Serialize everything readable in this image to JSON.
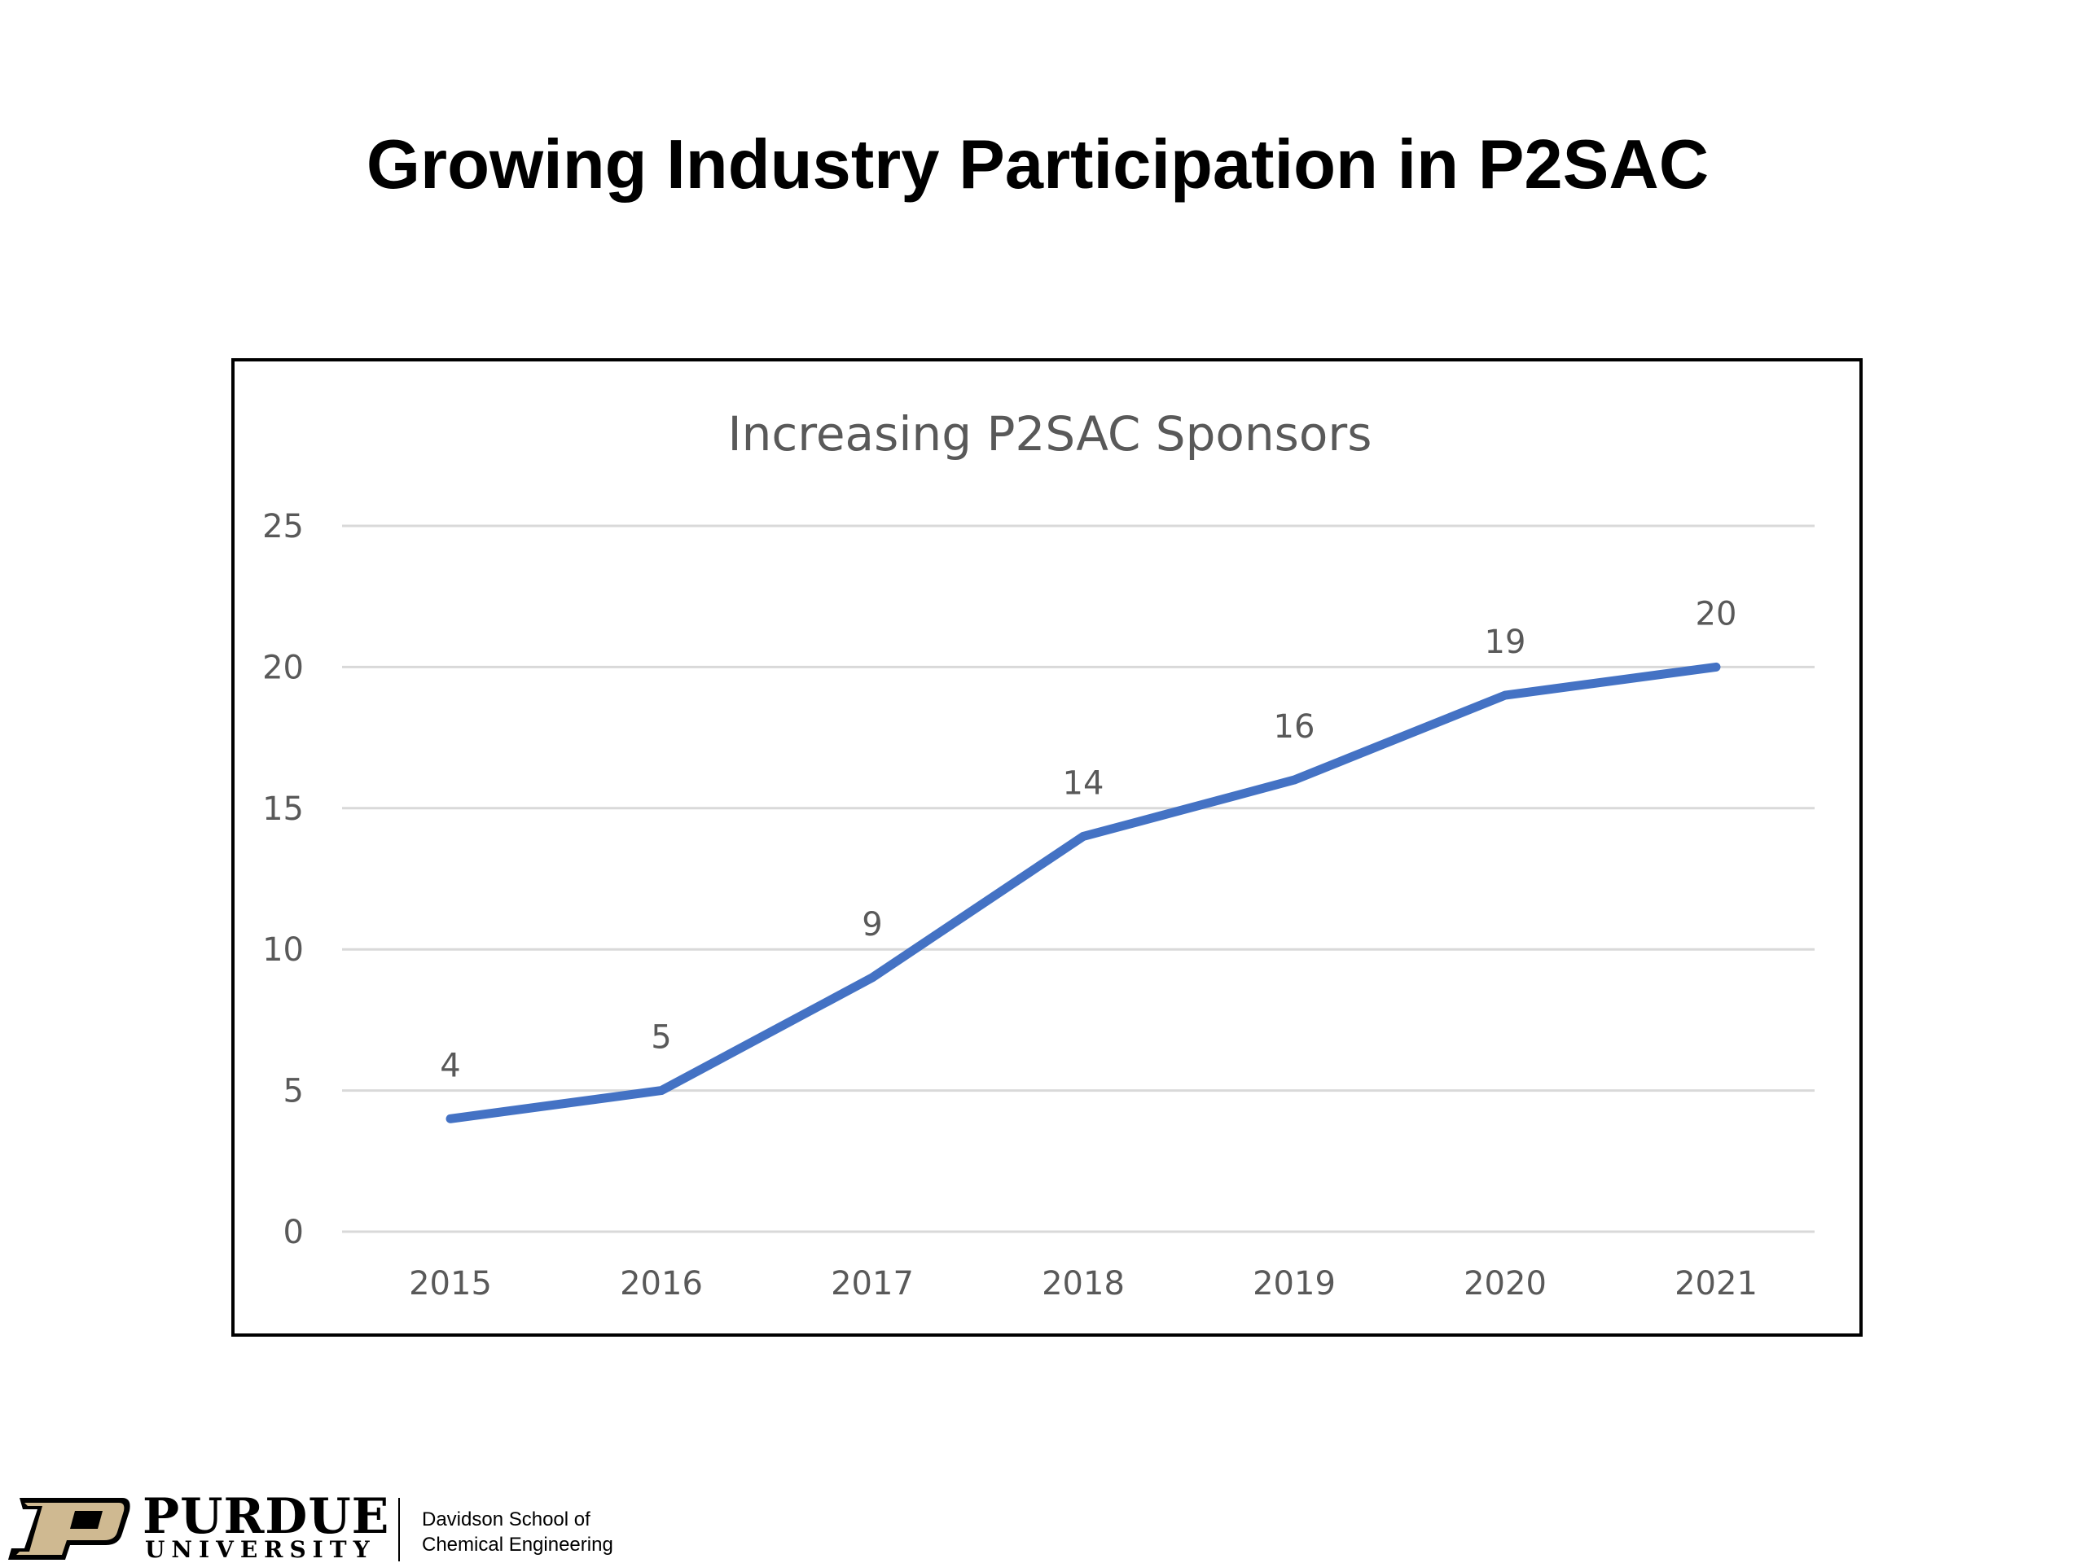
{
  "slide": {
    "title": "Growing Industry Participation in P2SAC"
  },
  "chart_data": {
    "type": "line",
    "title": "Increasing P2SAC Sponsors",
    "xlabel": "",
    "ylabel": "",
    "categories": [
      "2015",
      "2016",
      "2017",
      "2018",
      "2019",
      "2020",
      "2021"
    ],
    "series": [
      {
        "values": [
          4,
          5,
          9,
          14,
          16,
          19,
          20
        ]
      }
    ],
    "ylim": [
      0,
      25
    ],
    "yticks": [
      0,
      5,
      10,
      15,
      20,
      25
    ],
    "grid": true,
    "data_labels": true,
    "legend": "none",
    "colors": {
      "line": "#4472C4",
      "grid": "#D9D9D9",
      "tick_text": "#595959",
      "title_text": "#595959"
    }
  },
  "footer": {
    "logo_wordmark": "PURDUE",
    "logo_subtitle": "UNIVERSITY",
    "department_line1": "Davidson School of",
    "department_line2": "Chemical Engineering",
    "colors": {
      "gold": "#CFB991",
      "black": "#000000"
    }
  }
}
